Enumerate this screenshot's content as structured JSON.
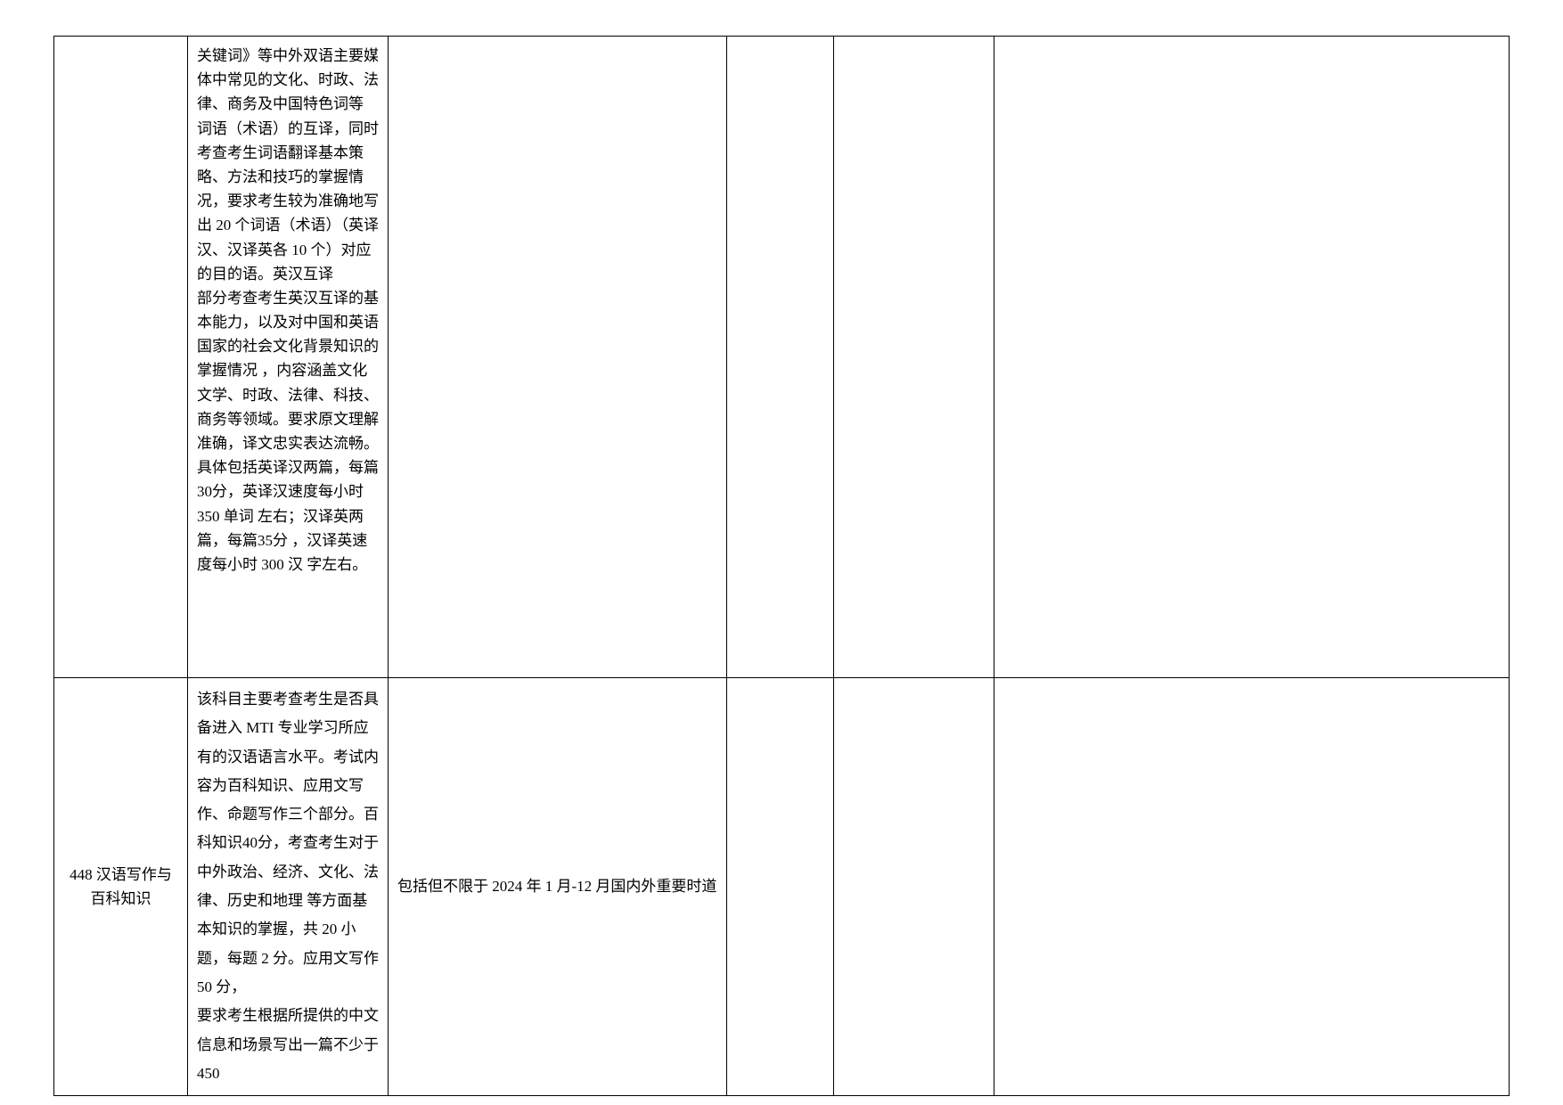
{
  "table": {
    "rows": [
      {
        "col1": "",
        "col2": "关键词》等中外双语主要媒体中常见的文化、时政、法律、商务及中国特色词等 词语（术语）的互译，同时 考查考生词语翻译基本策略、方法和技巧的掌握情况，要求考生较为准确地写出 20 个词语（术语）（英译汉、汉译英各 10 个）对应的目的语。英汉互译\n部分考查考生英汉互译的基本能力，以及对中国和英语国家的社会文化背景知识的掌握情况 ，内容涵盖文化文学、时政、法律、科技、商务等领域。要求原文理解准确，译文忠实表达流畅。具体包括英译汉两篇，每篇30分，英译汉速度每小时 350 单词 左右；汉译英两篇，每篇35分 ，汉译英速度每小时 300 汉 字左右。",
        "col3": "",
        "col4": "",
        "col5": "",
        "col6": ""
      },
      {
        "col1": "448 汉语写作与百科知识",
        "col2": "该科目主要考查考生是否具备进入 MTI 专业学习所应有的汉语语言水平。考试内容为百科知识、应用文写作、命题写作三个部分。百科知识40分，考查考生对于中外政治、经济、文化、法律、历史和地理 等方面基本知识的掌握，共 20 小题，每题 2 分。应用文写作 50 分，\n要求考生根据所提供的中文信息和场景写出一篇不少于 450",
        "col3": "包括但不限于 2024 年 1 月-12 月国内外重要时道",
        "col4": "",
        "col5": "",
        "col6": ""
      }
    ]
  }
}
